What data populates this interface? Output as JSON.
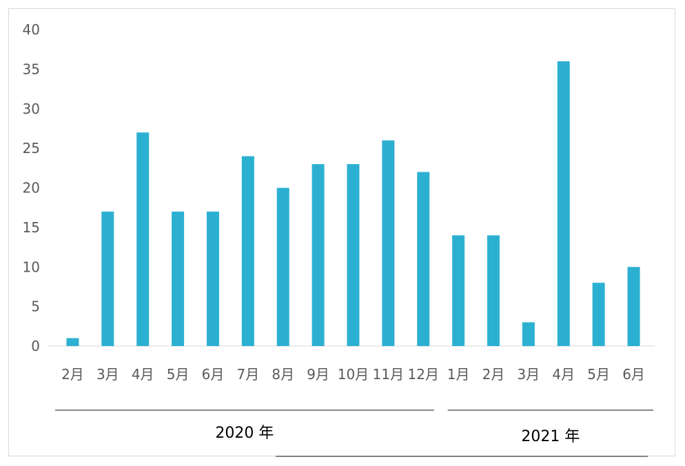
{
  "chart_data": {
    "type": "bar",
    "title": "",
    "xlabel": "",
    "ylabel": "",
    "categories": [
      "2月",
      "3月",
      "4月",
      "5月",
      "6月",
      "7月",
      "8月",
      "9月",
      "10月",
      "11月",
      "12月",
      "1月",
      "2月",
      "3月",
      "4月",
      "5月",
      "6月"
    ],
    "values": [
      1,
      17,
      27,
      17,
      17,
      24,
      20,
      23,
      23,
      26,
      22,
      14,
      14,
      3,
      36,
      8,
      10
    ],
    "ylim": [
      0,
      40
    ],
    "yticks": [
      0,
      5,
      10,
      15,
      20,
      25,
      30,
      35,
      40
    ],
    "grid": false,
    "legend": "none",
    "bar_color": "#2cb0d2",
    "groups": [
      {
        "label": "2020 年",
        "start": 0,
        "end": 10
      },
      {
        "label": "2021 年",
        "start": 11,
        "end": 16
      }
    ]
  }
}
